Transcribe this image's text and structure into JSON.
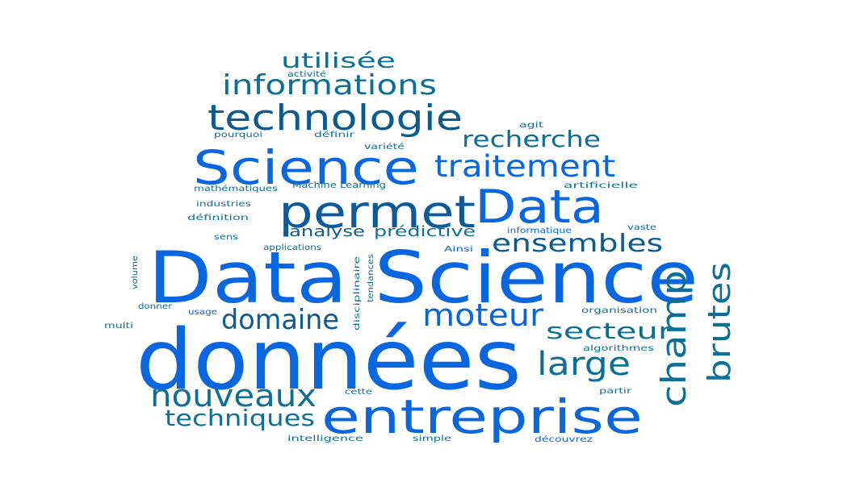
{
  "word_cloud": {
    "colors": {
      "blue": "#0866e0",
      "teal": "#0e6f96",
      "navy": "#0a4f8c"
    },
    "words": [
      {
        "id": "donnees",
        "text": "données",
        "color": "#0866e0"
      },
      {
        "id": "data-science",
        "text": "Data Science",
        "color": "#0866e0"
      },
      {
        "id": "entreprise",
        "text": "entreprise",
        "color": "#0866e0"
      },
      {
        "id": "science",
        "text": "Science",
        "color": "#0866e0"
      },
      {
        "id": "permet",
        "text": "permet",
        "color": "#0a5a9c"
      },
      {
        "id": "data",
        "text": "Data",
        "color": "#0866e0"
      },
      {
        "id": "technologie",
        "text": "technologie",
        "color": "#0b5b91"
      },
      {
        "id": "informations",
        "text": "informations",
        "color": "#0e6f96"
      },
      {
        "id": "utilisee",
        "text": "utilisée",
        "color": "#0e6f96"
      },
      {
        "id": "traitement",
        "text": "traitement",
        "color": "#0866e0"
      },
      {
        "id": "recherche",
        "text": "recherche",
        "color": "#0e6f96"
      },
      {
        "id": "ensembles",
        "text": "ensembles",
        "color": "#0b5b91"
      },
      {
        "id": "champ",
        "text": "champ",
        "color": "#0e6f96"
      },
      {
        "id": "brutes",
        "text": "brutes",
        "color": "#0e6f96"
      },
      {
        "id": "moteur",
        "text": "moteur",
        "color": "#0866e0"
      },
      {
        "id": "domaine",
        "text": "domaine",
        "color": "#0b5b91"
      },
      {
        "id": "nouveaux",
        "text": "nouveaux",
        "color": "#0e6f96"
      },
      {
        "id": "techniques",
        "text": "techniques",
        "color": "#0e6f96"
      },
      {
        "id": "secteur",
        "text": "secteur",
        "color": "#0e6f96"
      },
      {
        "id": "large",
        "text": "large",
        "color": "#0e6f96"
      },
      {
        "id": "analyse",
        "text": "analyse",
        "color": "#0b5b91"
      },
      {
        "id": "predictive",
        "text": "prédictive",
        "color": "#0e6f96"
      },
      {
        "id": "activite",
        "text": "activité",
        "color": "#0e6f96"
      },
      {
        "id": "pourquoi",
        "text": "pourquoi",
        "color": "#0e6f96"
      },
      {
        "id": "definir",
        "text": "définir",
        "color": "#0e6f96"
      },
      {
        "id": "agit",
        "text": "agit",
        "color": "#0e6f96"
      },
      {
        "id": "variete",
        "text": "variété",
        "color": "#0e6f96"
      },
      {
        "id": "mathematiques",
        "text": "mathématiques",
        "color": "#0e6f96"
      },
      {
        "id": "machine-learning",
        "text": "Machine Learning",
        "color": "#0e6f96"
      },
      {
        "id": "artificielle",
        "text": "artificielle",
        "color": "#0e6f96"
      },
      {
        "id": "industries",
        "text": "industries",
        "color": "#0e6f96"
      },
      {
        "id": "definition",
        "text": "définition",
        "color": "#0e6f96"
      },
      {
        "id": "informatique",
        "text": "informatique",
        "color": "#0866e0"
      },
      {
        "id": "vaste",
        "text": "vaste",
        "color": "#0e6f96"
      },
      {
        "id": "sens",
        "text": "sens",
        "color": "#0e6f96"
      },
      {
        "id": "applications",
        "text": "applications",
        "color": "#0e6f96"
      },
      {
        "id": "ainsi",
        "text": "Ainsi",
        "color": "#0866e0"
      },
      {
        "id": "volume",
        "text": "volume",
        "color": "#0e6f96"
      },
      {
        "id": "disciplinaire",
        "text": "disciplinaire",
        "color": "#0e6f96"
      },
      {
        "id": "tendances",
        "text": "tendances",
        "color": "#0e6f96"
      },
      {
        "id": "donner",
        "text": "donner",
        "color": "#0e6f96"
      },
      {
        "id": "usage",
        "text": "usage",
        "color": "#0866e0"
      },
      {
        "id": "organisation",
        "text": "organisation",
        "color": "#0e6f96"
      },
      {
        "id": "multi",
        "text": "multi",
        "color": "#0e6f96"
      },
      {
        "id": "algorithmes",
        "text": "algorithmes",
        "color": "#0e6f96"
      },
      {
        "id": "cette",
        "text": "cette",
        "color": "#0e6f96"
      },
      {
        "id": "partir",
        "text": "partir",
        "color": "#0e6f96"
      },
      {
        "id": "intelligence",
        "text": "intelligence",
        "color": "#0e6f96"
      },
      {
        "id": "simple",
        "text": "simple",
        "color": "#0e6f96"
      },
      {
        "id": "decouvrez",
        "text": "découvrez",
        "color": "#0866e0"
      }
    ]
  }
}
